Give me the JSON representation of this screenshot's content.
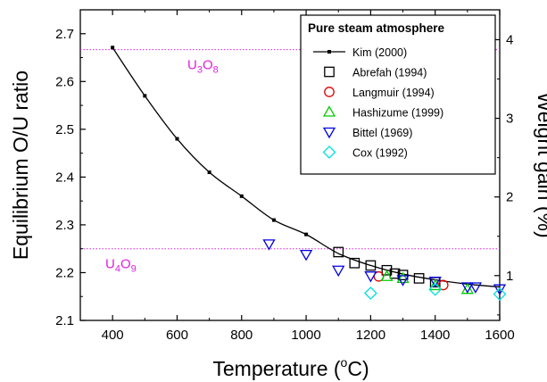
{
  "chart_data": {
    "type": "scatter",
    "title": "",
    "xlabel": {
      "main": "Temperature (",
      "sup": "o",
      "tail": "C)"
    },
    "ylabel": "Equilibrium O/U ratio",
    "y2label": "Weight gain (%)",
    "xlim": [
      300,
      1600
    ],
    "ylim": [
      2.1,
      2.75
    ],
    "y2lim": [
      0.43,
      4.38
    ],
    "xticks": [
      400,
      600,
      800,
      1000,
      1200,
      1400,
      1600
    ],
    "yticks": [
      2.1,
      2.2,
      2.3,
      2.4,
      2.5,
      2.6,
      2.7
    ],
    "y2ticks": [
      1,
      2,
      3,
      4
    ],
    "grid": false,
    "legend": {
      "title": "Pure steam atmosphere",
      "placement": "top-right"
    },
    "reference_lines": [
      {
        "y": 2.6667,
        "label_main": "U",
        "label_sub1": "3",
        "label_mid": "O",
        "label_sub2": "8",
        "color": "#e020e0"
      },
      {
        "y": 2.25,
        "label_main": "U",
        "label_sub1": "4",
        "label_mid": "O",
        "label_sub2": "9",
        "color": "#e020e0"
      }
    ],
    "series": [
      {
        "name": "Kim (2000)",
        "marker": "filled-square-line",
        "color": "#000000",
        "x": [
          400,
          500,
          600,
          700,
          800,
          900,
          1000
        ],
        "y": [
          2.671,
          2.57,
          2.48,
          2.41,
          2.36,
          2.31,
          2.28
        ],
        "curve_x": [
          400,
          500,
          600,
          700,
          800,
          900,
          1000,
          1100,
          1200,
          1300,
          1400,
          1500,
          1600
        ],
        "curve_y": [
          2.671,
          2.57,
          2.48,
          2.41,
          2.36,
          2.31,
          2.28,
          2.24,
          2.215,
          2.197,
          2.185,
          2.176,
          2.17
        ]
      },
      {
        "name": "Abrefah (1994)",
        "marker": "open-square",
        "color": "#000000",
        "x": [
          1100,
          1150,
          1200,
          1250,
          1275,
          1300,
          1350,
          1400
        ],
        "y": [
          2.243,
          2.22,
          2.215,
          2.205,
          2.198,
          2.195,
          2.188,
          2.18
        ]
      },
      {
        "name": "Langmuir (1994)",
        "marker": "open-circle",
        "color": "#e00000",
        "x": [
          1225,
          1425
        ],
        "y": [
          2.192,
          2.174
        ]
      },
      {
        "name": "Hashizume (1999)",
        "marker": "open-triangle-up",
        "color": "#00cc00",
        "x": [
          1250,
          1300,
          1400,
          1500
        ],
        "y": [
          2.192,
          2.188,
          2.173,
          2.165
        ]
      },
      {
        "name": "Bittel (1969)",
        "marker": "open-triangle-down",
        "color": "#0000e0",
        "x": [
          885,
          1000,
          1100,
          1200,
          1300,
          1400,
          1500,
          1525,
          1600
        ],
        "y": [
          2.26,
          2.238,
          2.205,
          2.193,
          2.185,
          2.182,
          2.17,
          2.17,
          2.166
        ]
      },
      {
        "name": "Cox (1992)",
        "marker": "open-diamond",
        "color": "#00e0e0",
        "x": [
          1200,
          1400,
          1600
        ],
        "y": [
          2.157,
          2.165,
          2.155
        ]
      }
    ]
  }
}
